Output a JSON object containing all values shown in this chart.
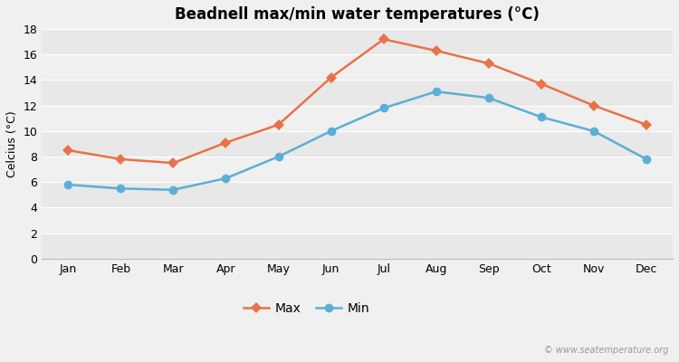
{
  "title": "Beadnell max/min water temperatures (°C)",
  "ylabel": "Celcius (°C)",
  "months": [
    "Jan",
    "Feb",
    "Mar",
    "Apr",
    "May",
    "Jun",
    "Jul",
    "Aug",
    "Sep",
    "Oct",
    "Nov",
    "Dec"
  ],
  "max_values": [
    8.5,
    7.8,
    7.5,
    9.1,
    10.5,
    14.2,
    17.2,
    16.3,
    15.3,
    13.7,
    12.0,
    10.5
  ],
  "min_values": [
    5.8,
    5.5,
    5.4,
    6.3,
    8.0,
    10.0,
    11.8,
    13.1,
    12.6,
    11.1,
    10.0,
    7.8
  ],
  "max_color": "#e8724a",
  "min_color": "#5bafd6",
  "bg_color": "#f0f0f0",
  "band_colors": [
    "#e8e8e8",
    "#f0f0f0"
  ],
  "ylim": [
    0,
    18
  ],
  "yticks": [
    0,
    2,
    4,
    6,
    8,
    10,
    12,
    14,
    16,
    18
  ],
  "legend_labels": [
    "Max",
    "Min"
  ],
  "watermark": "© www.seatemperature.org",
  "marker_size_max": 6,
  "marker_size_min": 7,
  "line_width": 1.8,
  "title_fontsize": 12,
  "axis_fontsize": 9,
  "legend_fontsize": 10
}
